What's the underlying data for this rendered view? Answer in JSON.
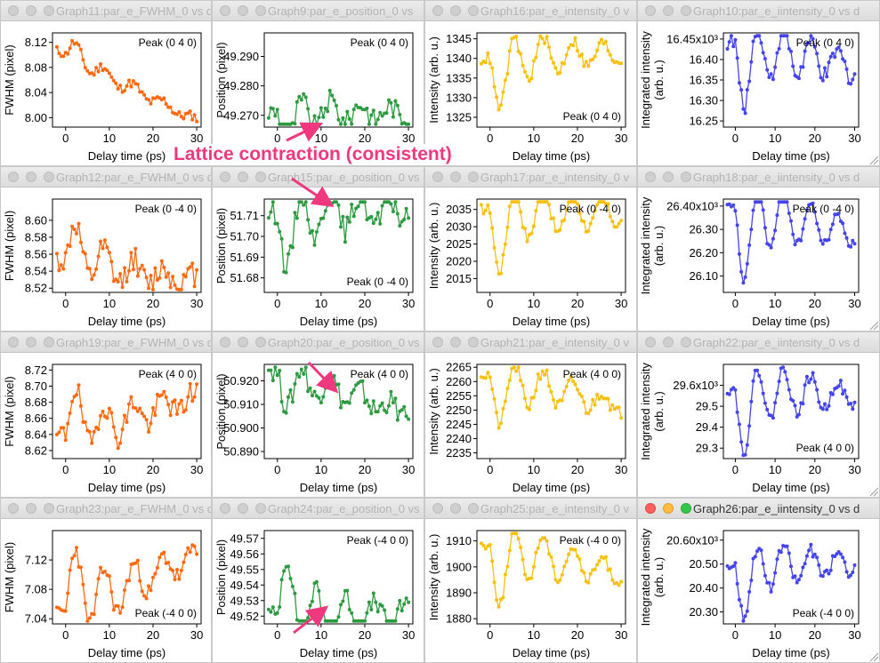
{
  "annotation": {
    "callout": "Lattice contraction (consistent)",
    "color": "#f0387f"
  },
  "theme": {
    "orange": "#ff6a10",
    "green": "#2d9a40",
    "yellow": "#f8c00f",
    "blue": "#4444ee"
  },
  "x_axis": {
    "label": "Delay time (ps)",
    "ticks": [
      0,
      10,
      20,
      30
    ],
    "range": [
      -3,
      31
    ]
  },
  "windows": [
    {
      "title": "Graph11:par_e_FWHM_0 vs d",
      "active": false,
      "chart_data": {
        "type": "line",
        "color": "#ff6a10",
        "ylabel": [
          "FWHM (pixel)"
        ],
        "yticks": [
          "8.12",
          "8.08",
          "8.04",
          "8.00"
        ],
        "ytick_values": [
          8.12,
          8.08,
          8.04,
          8.0
        ],
        "ylim": [
          7.985,
          8.135
        ],
        "legend": "Peak (0 4 0)",
        "legend_pos": "top-right",
        "base": 8.1,
        "trend": -0.0035,
        "osc": 0.012,
        "dip": 0.03,
        "y_end": 7.99,
        "seed": 11
      }
    },
    {
      "title": "Graph9:par_e_position_0 vs",
      "active": false,
      "chart_data": {
        "type": "line",
        "color": "#2d9a40",
        "ylabel": [
          "Position (pixel)"
        ],
        "yticks": [
          "49.290",
          "49.280",
          "49.270"
        ],
        "ytick_values": [
          49.29,
          49.28,
          49.27
        ],
        "ylim": [
          49.266,
          49.298
        ],
        "legend": "Peak (0 4 0)",
        "legend_pos": "top-right",
        "base": 49.271,
        "trend": 0.0,
        "osc": 0.006,
        "dip": -0.012,
        "y_end": 49.275,
        "seed": 9
      }
    },
    {
      "title": "Graph16:par_e_intensity_0 v",
      "active": false,
      "chart_data": {
        "type": "line",
        "color": "#f8c00f",
        "ylabel": [
          "Intensity (arb. u.)"
        ],
        "yticks": [
          "1345",
          "1340",
          "1335",
          "1330",
          "1325"
        ],
        "ytick_values": [
          1345,
          1340,
          1335,
          1330,
          1325
        ],
        "ylim": [
          1322.5,
          1346.5
        ],
        "legend": "Peak (0 4 0)",
        "legend_pos": "bottom-right",
        "base": 1340,
        "trend": 0.05,
        "osc": 2.5,
        "dip": -14,
        "y_end": 1342,
        "seed": 16
      }
    },
    {
      "title": "Graph10:par_e_iintensity_0 vs d",
      "active": false,
      "chart_data": {
        "type": "line",
        "color": "#4444ee",
        "ylabel": [
          "Integrated intensity",
          "(arb. u.)"
        ],
        "yticks": [
          "16.45x10³",
          "16.40",
          "16.35",
          "16.30",
          "16.25"
        ],
        "ytick_values": [
          16450,
          16400,
          16350,
          16300,
          16250
        ],
        "ylim": [
          16235,
          16465
        ],
        "legend": "Peak (0 4 0)",
        "legend_pos": "top-right",
        "base": 16440,
        "trend": -2.0,
        "osc": 35,
        "dip": -170,
        "y_end": 16255,
        "seed": 10
      }
    },
    {
      "title": "Graph12:par_e_FWHM_0 vs d",
      "active": false,
      "chart_data": {
        "type": "line",
        "color": "#ff6a10",
        "ylabel": [
          "FWHM (pixel)"
        ],
        "yticks": [
          "8.60",
          "8.58",
          "8.56",
          "8.54",
          "8.52"
        ],
        "ytick_values": [
          8.6,
          8.58,
          8.56,
          8.54,
          8.52
        ],
        "ylim": [
          8.515,
          8.625
        ],
        "legend": "Peak (0 -4 0)",
        "legend_pos": "top-right",
        "base": 8.552,
        "trend": -0.0008,
        "osc": 0.025,
        "dip": 0.05,
        "y_end": 8.525,
        "seed": 12
      }
    },
    {
      "title": "Graph15:par_e_position_0 vs",
      "active": false,
      "chart_data": {
        "type": "line",
        "color": "#2d9a40",
        "ylabel": [
          "Position (pixel)"
        ],
        "yticks": [
          "51.71",
          "51.70",
          "51.69",
          "51.68"
        ],
        "ytick_values": [
          51.71,
          51.7,
          51.69,
          51.68
        ],
        "ylim": [
          51.673,
          51.718
        ],
        "legend": "Peak (0 -4 0)",
        "legend_pos": "bottom-right",
        "base": 51.712,
        "trend": 0.0,
        "osc": 0.01,
        "dip": -0.03,
        "y_end": 51.71,
        "seed": 15
      }
    },
    {
      "title": "Graph17:par_e_intensity_0 v",
      "active": false,
      "chart_data": {
        "type": "line",
        "color": "#f8c00f",
        "ylabel": [
          "Intensity (arb. u.)"
        ],
        "yticks": [
          "2035",
          "2030",
          "2025",
          "2020",
          "2015"
        ],
        "ytick_values": [
          2035,
          2030,
          2025,
          2020,
          2015
        ],
        "ylim": [
          2011,
          2038
        ],
        "legend": "Peak (0 -4 0)",
        "legend_pos": "top-right",
        "base": 2035,
        "trend": -0.05,
        "osc": 2.5,
        "dip": -20,
        "y_end": 2025,
        "seed": 17
      }
    },
    {
      "title": "Graph18:par_e_iintensity_0 vs d",
      "active": false,
      "chart_data": {
        "type": "line",
        "color": "#4444ee",
        "ylabel": [
          "Integrated intensity",
          "(arb. u.)"
        ],
        "yticks": [
          "26.40x10³",
          "26.30",
          "26.20",
          "26.10"
        ],
        "ytick_values": [
          26400,
          26300,
          26200,
          26100
        ],
        "ylim": [
          26030,
          26430
        ],
        "legend": "Peak (0 -4 0)",
        "legend_pos": "top-right",
        "base": 26390,
        "trend": -3.5,
        "osc": 30,
        "dip": -340,
        "y_end": 26160,
        "seed": 18
      }
    },
    {
      "title": "Graph19:par_e_FWHM_0 vs d",
      "active": false,
      "chart_data": {
        "type": "line",
        "color": "#ff6a10",
        "ylabel": [
          "FWHM (pixel)"
        ],
        "yticks": [
          "8.72",
          "8.70",
          "8.68",
          "8.66",
          "8.64",
          "8.62"
        ],
        "ytick_values": [
          8.72,
          8.7,
          8.68,
          8.66,
          8.64,
          8.62
        ],
        "ylim": [
          8.61,
          8.727
        ],
        "legend": "Peak (4 0 0)",
        "legend_pos": "top-right",
        "base": 8.64,
        "trend": 0.0015,
        "osc": 0.025,
        "dip": 0.06,
        "y_end": 8.69,
        "seed": 19
      }
    },
    {
      "title": "Graph20:par_e_position_0 vs",
      "active": false,
      "chart_data": {
        "type": "line",
        "color": "#2d9a40",
        "ylabel": [
          "Position (pixel)"
        ],
        "yticks": [
          "50.920",
          "50.910",
          "50.900",
          "50.890"
        ],
        "ytick_values": [
          50.92,
          50.91,
          50.9,
          50.89
        ],
        "ylim": [
          50.887,
          50.927
        ],
        "legend": "Peak (4 0 0)",
        "legend_pos": "top-right",
        "base": 50.924,
        "trend": -0.0006,
        "osc": 0.008,
        "dip": -0.015,
        "y_end": 50.9,
        "seed": 20
      }
    },
    {
      "title": "Graph21:par_e_intensity_0 v",
      "active": false,
      "chart_data": {
        "type": "line",
        "color": "#f8c00f",
        "ylabel": [
          "Intensity (arb. u.)"
        ],
        "yticks": [
          "2265",
          "2260",
          "2255",
          "2250",
          "2245",
          "2240",
          "2235"
        ],
        "ytick_values": [
          2265,
          2260,
          2255,
          2250,
          2245,
          2240,
          2235
        ],
        "ylim": [
          2233,
          2266
        ],
        "legend": "Peak (4 0 0)",
        "legend_pos": "top-right",
        "base": 2262,
        "trend": -0.35,
        "osc": 4,
        "dip": -18,
        "y_end": 2240,
        "seed": 21
      }
    },
    {
      "title": "Graph22:par_e_iintensity_0 vs d",
      "active": false,
      "chart_data": {
        "type": "line",
        "color": "#4444ee",
        "ylabel": [
          "Integrated intensity",
          "(arb. u.)"
        ],
        "yticks": [
          "29.6x10³",
          "29.5",
          "29.4",
          "29.3"
        ],
        "ytick_values": [
          29600,
          29500,
          29400,
          29300
        ],
        "ylim": [
          29250,
          29700
        ],
        "legend": "Peak (4 0 0)",
        "legend_pos": "bottom-right",
        "base": 29580,
        "trend": -1.0,
        "osc": 45,
        "dip": -330,
        "y_end": 29480,
        "seed": 22
      }
    },
    {
      "title": "Graph23:par_e_FWHM_0 vs d",
      "active": false,
      "chart_data": {
        "type": "line",
        "color": "#ff6a10",
        "ylabel": [
          "FWHM (pixel)"
        ],
        "yticks": [
          "7.12",
          "7.08",
          "7.04"
        ],
        "ytick_values": [
          7.12,
          7.08,
          7.04
        ],
        "ylim": [
          7.033,
          7.16
        ],
        "legend": "Peak (-4 0 0)",
        "legend_pos": "bottom-right",
        "base": 7.05,
        "trend": 0.0025,
        "osc": 0.02,
        "dip": 0.09,
        "y_end": 7.1,
        "seed": 23
      }
    },
    {
      "title": "Graph24:par_e_position_0 vs",
      "active": false,
      "chart_data": {
        "type": "line",
        "color": "#2d9a40",
        "ylabel": [
          "Position (pixel)"
        ],
        "yticks": [
          "49.57",
          "49.56",
          "49.55",
          "49.54",
          "49.53",
          "49.52"
        ],
        "ytick_values": [
          49.57,
          49.56,
          49.55,
          49.54,
          49.53,
          49.52
        ],
        "ylim": [
          49.515,
          49.575
        ],
        "legend": "Peak (-4 0 0)",
        "legend_pos": "top-right",
        "base": 49.521,
        "trend": 0.0,
        "osc": 0.01,
        "dip": 0.04,
        "y_end": 49.54,
        "seed": 24
      }
    },
    {
      "title": "Graph25:par_e_intensity_0 v",
      "active": false,
      "chart_data": {
        "type": "line",
        "color": "#f8c00f",
        "ylabel": [
          "Intensity (arb. u.)"
        ],
        "yticks": [
          "1910",
          "1900",
          "1890",
          "1880"
        ],
        "ytick_values": [
          1910,
          1900,
          1890,
          1880
        ],
        "ylim": [
          1878,
          1914
        ],
        "legend": "Peak (-4 0 0)",
        "legend_pos": "top-right",
        "base": 1908,
        "trend": -0.35,
        "osc": 3,
        "dip": -24,
        "y_end": 1893,
        "seed": 25
      }
    },
    {
      "title": "Graph26:par_e_iintensity_0 vs d",
      "active": true,
      "chart_data": {
        "type": "line",
        "color": "#4444ee",
        "ylabel": [
          "Integrated intensity",
          "(arb. u.)"
        ],
        "yticks": [
          "20.60x10³",
          "20.50",
          "20.40",
          "20.30"
        ],
        "ytick_values": [
          20600,
          20500,
          20400,
          20300
        ],
        "ylim": [
          20250,
          20640
        ],
        "legend": "Peak (-4 0 0)",
        "legend_pos": "bottom-right",
        "base": 20495,
        "trend": 0.2,
        "osc": 40,
        "dip": -240,
        "y_end": 20480,
        "seed": 26
      }
    }
  ]
}
